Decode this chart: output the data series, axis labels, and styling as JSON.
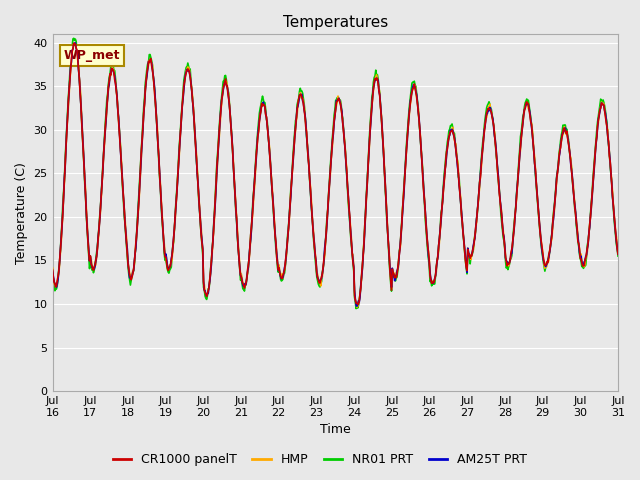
{
  "title": "Temperatures",
  "xlabel": "Time",
  "ylabel": "Temperature (C)",
  "ylim": [
    0,
    41
  ],
  "yticks": [
    0,
    5,
    10,
    15,
    20,
    25,
    30,
    35,
    40
  ],
  "annotation_text": "WP_met",
  "bg_color": "#e8e8e8",
  "legend_labels": [
    "CR1000 panelT",
    "HMP",
    "NR01 PRT",
    "AM25T PRT"
  ],
  "legend_colors": [
    "#cc0000",
    "#ffaa00",
    "#00cc00",
    "#0000cc"
  ],
  "line_width": 1.2,
  "xtick_labels": [
    "Jul\n16",
    "Jul\n17",
    "Jul\n18",
    "Jul\n19",
    "Jul\n20",
    "Jul\n21",
    "Jul\n22",
    "Jul\n23",
    "Jul\n24",
    "Jul\n25",
    "Jul\n26",
    "Jul\n27",
    "Jul\n28",
    "Jul\n29",
    "Jul\n30",
    "Jul\n31"
  ],
  "num_days": 15,
  "title_fontsize": 11,
  "day_peaks": [
    40.0,
    37.0,
    38.0,
    37.0,
    35.5,
    33.0,
    34.0,
    33.5,
    36.0,
    35.0,
    30.0,
    32.5,
    33.0,
    30.0,
    33.0
  ],
  "day_mins": [
    12.0,
    14.0,
    13.0,
    14.0,
    11.0,
    12.0,
    13.0,
    12.5,
    9.8,
    13.0,
    12.5,
    15.5,
    14.5,
    14.5,
    14.5
  ]
}
